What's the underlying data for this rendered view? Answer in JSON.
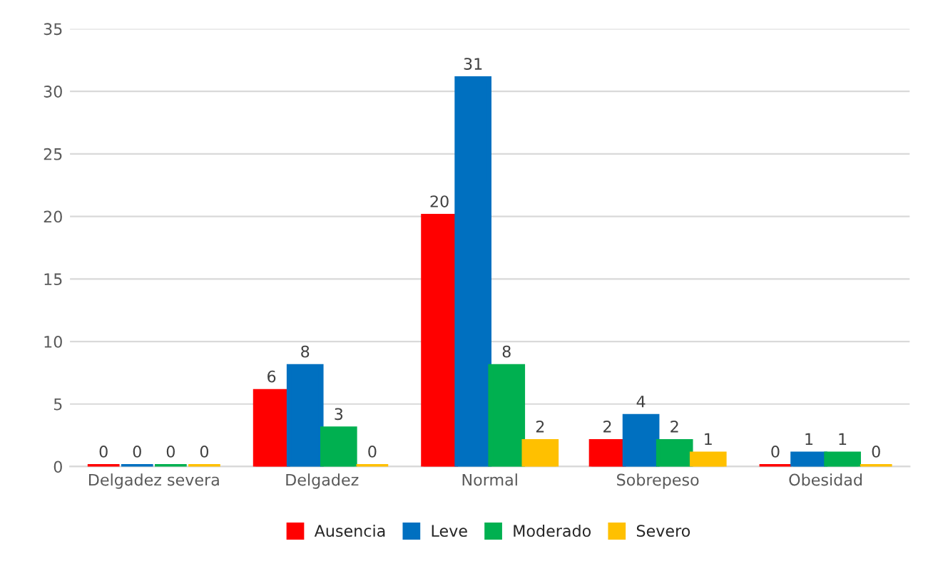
{
  "chart_data": {
    "type": "bar",
    "categories": [
      "Delgadez severa",
      "Delgadez",
      "Normal",
      "Sobrepeso",
      "Obesidad"
    ],
    "series": [
      {
        "name": "Ausencia",
        "color": "#ff0000",
        "values": [
          0,
          6,
          20,
          2,
          0
        ]
      },
      {
        "name": "Leve",
        "color": "#0070c0",
        "values": [
          0,
          8,
          31,
          4,
          1
        ]
      },
      {
        "name": "Moderado",
        "color": "#00b050",
        "values": [
          0,
          3,
          8,
          2,
          1
        ]
      },
      {
        "name": "Severo",
        "color": "#ffc000",
        "values": [
          0,
          0,
          2,
          1,
          0
        ]
      }
    ],
    "ylim": [
      0,
      35
    ],
    "yticks": [
      0,
      5,
      10,
      15,
      20,
      25,
      30,
      35
    ],
    "grid": "y",
    "legend": "bottom",
    "data_labels": true
  }
}
